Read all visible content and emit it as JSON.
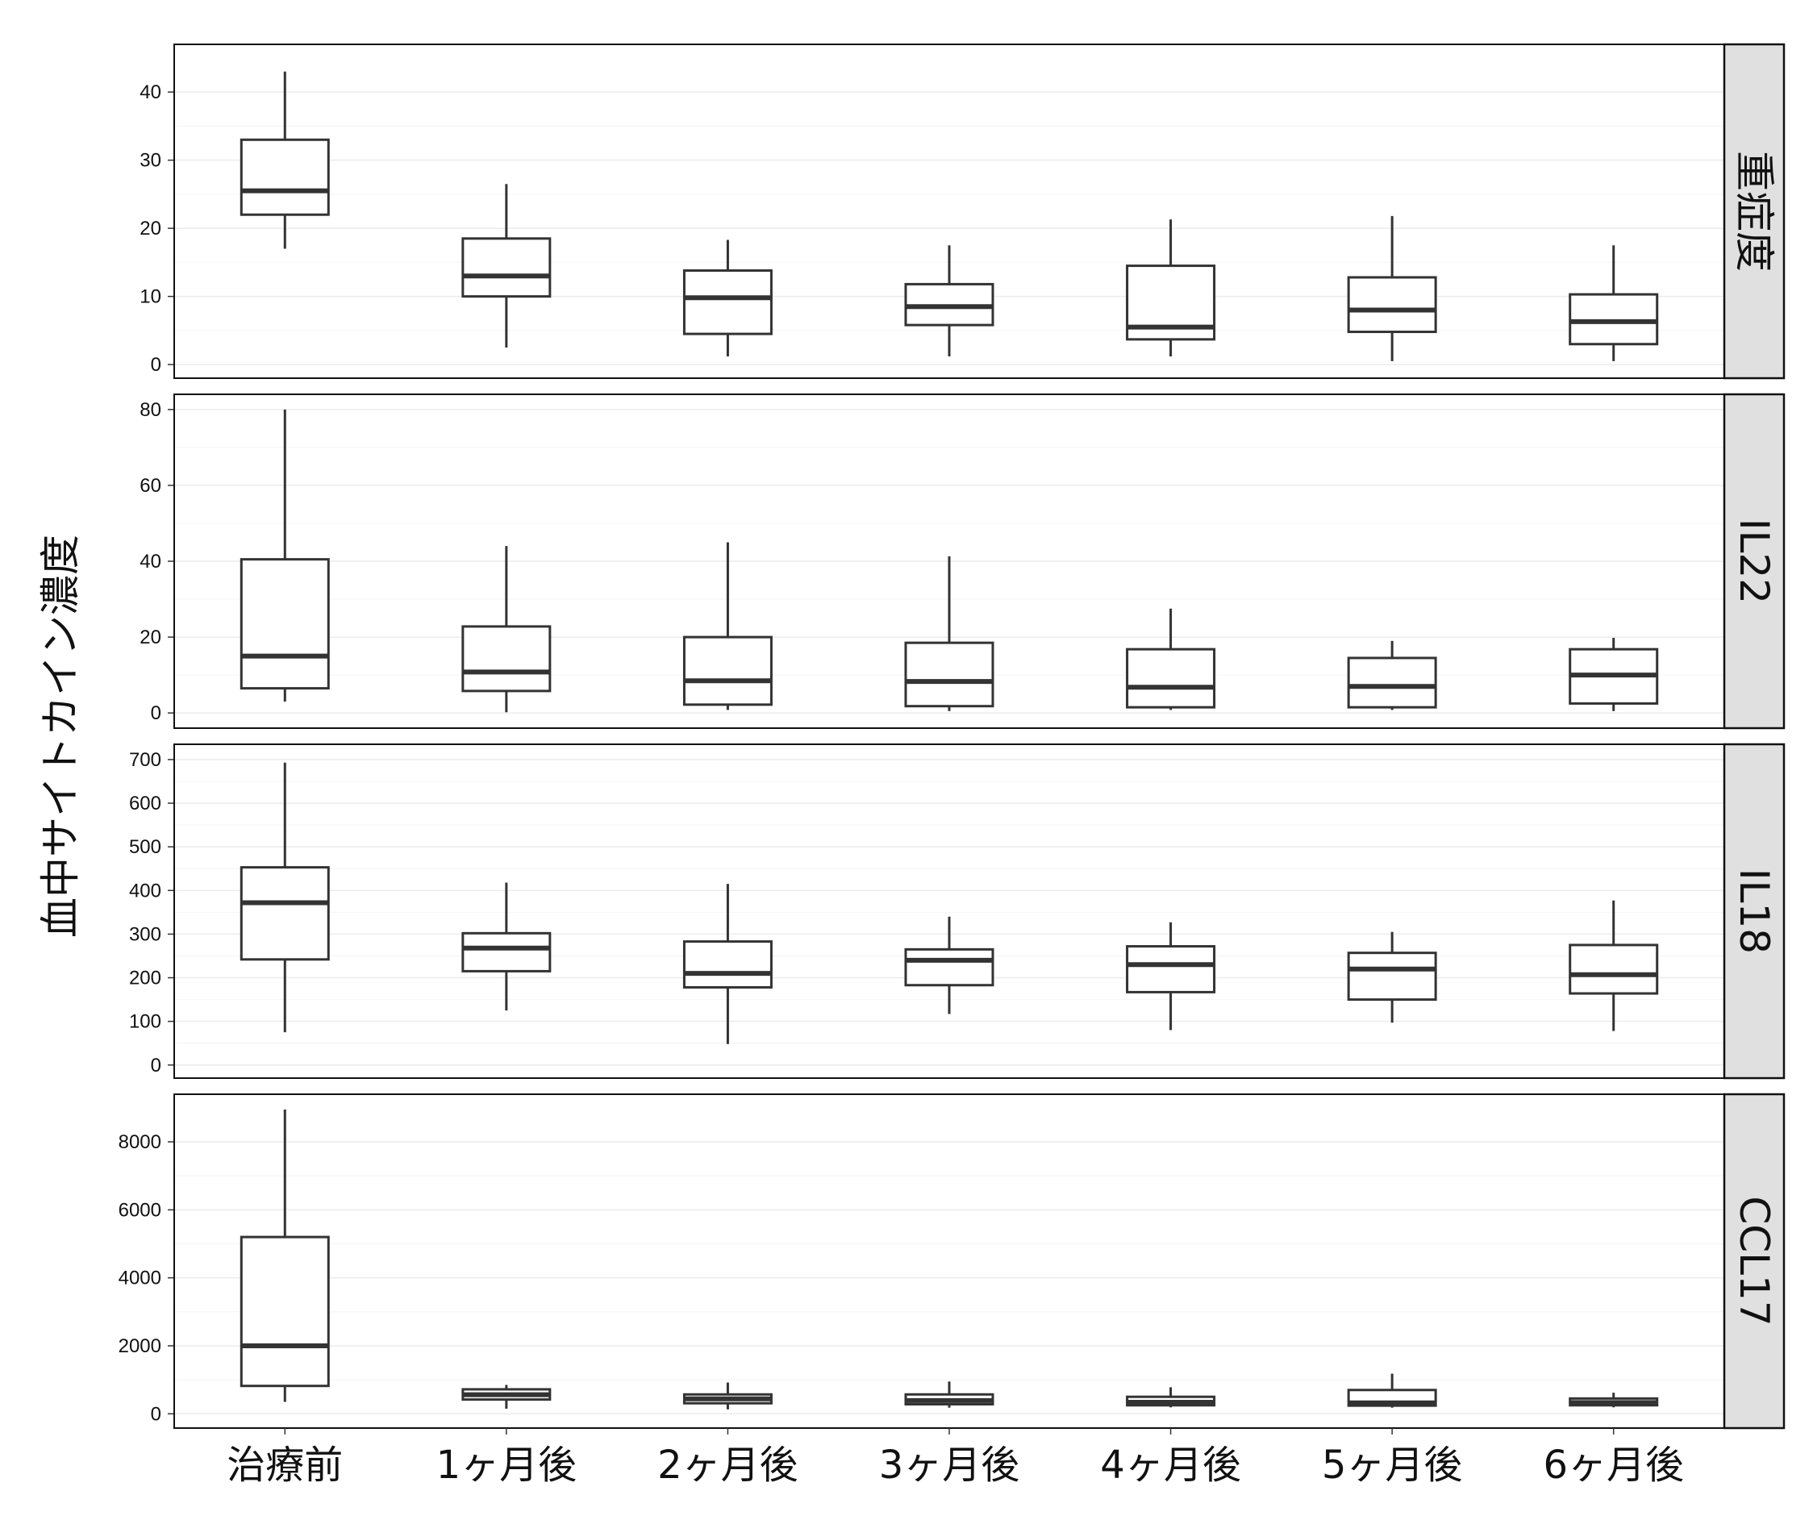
{
  "chart_data": {
    "type": "boxplot",
    "ylabel": "血中サイトカイン濃度",
    "categories": [
      "治療前",
      "1ヶ月後",
      "2ヶ月後",
      "3ヶ月後",
      "4ヶ月後",
      "5ヶ月後",
      "6ヶ月後"
    ],
    "grid": true,
    "facet_layout": "vertical strips, labels on right",
    "panels": [
      {
        "label": "重症度",
        "ylim": [
          -2,
          47
        ],
        "yticks": [
          0,
          10,
          20,
          30,
          40
        ],
        "boxes": [
          {
            "min": 17,
            "q1": 22,
            "median": 25.5,
            "q3": 33,
            "max": 43
          },
          {
            "min": 2.5,
            "q1": 10,
            "median": 13,
            "q3": 18.5,
            "max": 26.5
          },
          {
            "min": 1.2,
            "q1": 4.5,
            "median": 9.8,
            "q3": 13.8,
            "max": 18.3
          },
          {
            "min": 1.2,
            "q1": 5.8,
            "median": 8.5,
            "q3": 11.8,
            "max": 17.5
          },
          {
            "min": 1.2,
            "q1": 3.7,
            "median": 5.5,
            "q3": 14.5,
            "max": 21.3
          },
          {
            "min": 0.5,
            "q1": 4.8,
            "median": 8.0,
            "q3": 12.8,
            "max": 21.8
          },
          {
            "min": 0.5,
            "q1": 3.0,
            "median": 6.3,
            "q3": 10.3,
            "max": 17.5
          }
        ]
      },
      {
        "label": "IL22",
        "ylim": [
          -4,
          84
        ],
        "yticks": [
          0,
          20,
          40,
          60,
          80
        ],
        "boxes": [
          {
            "min": 3,
            "q1": 6.5,
            "median": 15,
            "q3": 40.5,
            "max": 80
          },
          {
            "min": 0.2,
            "q1": 5.8,
            "median": 10.8,
            "q3": 22.8,
            "max": 44
          },
          {
            "min": 0.8,
            "q1": 2.2,
            "median": 8.5,
            "q3": 20,
            "max": 45
          },
          {
            "min": 0.5,
            "q1": 1.8,
            "median": 8.3,
            "q3": 18.5,
            "max": 41.3
          },
          {
            "min": 0.8,
            "q1": 1.5,
            "median": 6.8,
            "q3": 16.8,
            "max": 27.5
          },
          {
            "min": 0.8,
            "q1": 1.5,
            "median": 7.0,
            "q3": 14.5,
            "max": 19.0
          },
          {
            "min": 0.5,
            "q1": 2.5,
            "median": 10.0,
            "q3": 16.8,
            "max": 19.8
          }
        ]
      },
      {
        "label": "IL18",
        "ylim": [
          -30,
          735
        ],
        "yticks": [
          0,
          100,
          200,
          300,
          400,
          500,
          600,
          700
        ],
        "boxes": [
          {
            "min": 75,
            "q1": 242,
            "median": 372,
            "q3": 453,
            "max": 693
          },
          {
            "min": 125,
            "q1": 215,
            "median": 268,
            "q3": 302,
            "max": 418
          },
          {
            "min": 48,
            "q1": 178,
            "median": 210,
            "q3": 283,
            "max": 415
          },
          {
            "min": 117,
            "q1": 183,
            "median": 240,
            "q3": 265,
            "max": 340
          },
          {
            "min": 80,
            "q1": 167,
            "median": 230,
            "q3": 272,
            "max": 327
          },
          {
            "min": 97,
            "q1": 150,
            "median": 220,
            "q3": 257,
            "max": 305
          },
          {
            "min": 78,
            "q1": 164,
            "median": 207,
            "q3": 275,
            "max": 377
          }
        ]
      },
      {
        "label": "CCL17",
        "ylim": [
          -420,
          9400
        ],
        "yticks": [
          0,
          2000,
          4000,
          6000,
          8000
        ],
        "boxes": [
          {
            "min": 350,
            "q1": 820,
            "median": 2000,
            "q3": 5200,
            "max": 8950
          },
          {
            "min": 150,
            "q1": 420,
            "median": 560,
            "q3": 720,
            "max": 850
          },
          {
            "min": 130,
            "q1": 310,
            "median": 440,
            "q3": 570,
            "max": 920
          },
          {
            "min": 180,
            "q1": 280,
            "median": 390,
            "q3": 570,
            "max": 950
          },
          {
            "min": 190,
            "q1": 250,
            "median": 340,
            "q3": 500,
            "max": 780
          },
          {
            "min": 180,
            "q1": 240,
            "median": 320,
            "q3": 700,
            "max": 1180
          },
          {
            "min": 190,
            "q1": 250,
            "median": 330,
            "q3": 450,
            "max": 620
          }
        ]
      }
    ]
  }
}
